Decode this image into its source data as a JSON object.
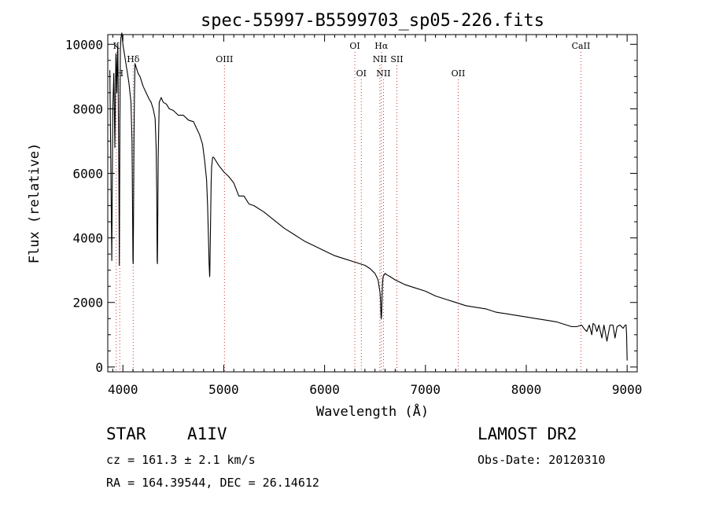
{
  "chart_data": {
    "type": "line",
    "title": "spec-55997-B5599703_sp05-226.fits",
    "xlabel": "Wavelength (Å)",
    "ylabel": "Flux (relative)",
    "xlim": [
      3850,
      9100
    ],
    "ylim": [
      -150,
      10300
    ],
    "xticks": [
      4000,
      5000,
      6000,
      7000,
      8000,
      9000
    ],
    "yticks": [
      0,
      2000,
      4000,
      6000,
      8000,
      10000
    ],
    "grid": false,
    "line_color": "#000000",
    "marker_color": "#cc3333",
    "series": [
      {
        "x": [
          3870,
          3880,
          3890,
          3900,
          3910,
          3920,
          3930,
          3935,
          3940,
          3945,
          3950,
          3960,
          3965,
          3970,
          3975,
          3980,
          3990,
          4000,
          4010,
          4020,
          4040,
          4060,
          4080,
          4090,
          4095,
          4100,
          4102,
          4105,
          4110,
          4115,
          4120,
          4130,
          4150,
          4170,
          4200,
          4230,
          4260,
          4280,
          4300,
          4320,
          4330,
          4335,
          4340,
          4342,
          4345,
          4350,
          4360,
          4380,
          4400,
          4430,
          4460,
          4500,
          4550,
          4600,
          4650,
          4700,
          4730,
          4760,
          4790,
          4810,
          4830,
          4840,
          4850,
          4855,
          4860,
          4862,
          4865,
          4870,
          4875,
          4880,
          4890,
          4900,
          4950,
          5000,
          5050,
          5100,
          5150,
          5200,
          5250,
          5300,
          5400,
          5500,
          5600,
          5700,
          5800,
          5900,
          6000,
          6100,
          6200,
          6300,
          6400,
          6450,
          6500,
          6530,
          6550,
          6555,
          6560,
          6563,
          6566,
          6570,
          6575,
          6580,
          6600,
          6620,
          6650,
          6700,
          6800,
          6900,
          7000,
          7100,
          7200,
          7300,
          7400,
          7500,
          7600,
          7700,
          7800,
          7900,
          8000,
          8100,
          8200,
          8300,
          8400,
          8450,
          8500,
          8550,
          8570,
          8600,
          8625,
          8650,
          8662,
          8680,
          8700,
          8720,
          8750,
          8770,
          8800,
          8830,
          8860,
          8880,
          8900,
          8930,
          8960,
          8980,
          8990,
          8995,
          9000
        ],
        "y": [
          9200,
          6500,
          3300,
          8000,
          9100,
          6800,
          9700,
          9200,
          8500,
          9600,
          10000,
          6000,
          3150,
          7500,
          9800,
          10200,
          10350,
          10000,
          9800,
          9600,
          9200,
          8800,
          8200,
          7000,
          5200,
          3300,
          3200,
          4500,
          7000,
          8600,
          9400,
          9300,
          9100,
          9000,
          8700,
          8500,
          8300,
          8200,
          8000,
          7700,
          6800,
          5500,
          3300,
          3200,
          4300,
          6500,
          8200,
          8350,
          8200,
          8150,
          8000,
          7950,
          7800,
          7800,
          7650,
          7600,
          7400,
          7200,
          6900,
          6400,
          5800,
          5000,
          3800,
          3200,
          2800,
          2850,
          3500,
          4700,
          5700,
          6200,
          6500,
          6500,
          6250,
          6050,
          5900,
          5700,
          5300,
          5300,
          5050,
          5000,
          4800,
          4550,
          4300,
          4100,
          3900,
          3750,
          3600,
          3450,
          3350,
          3250,
          3150,
          3050,
          2900,
          2700,
          2300,
          2000,
          1550,
          1500,
          1700,
          2200,
          2600,
          2800,
          2900,
          2850,
          2800,
          2700,
          2550,
          2450,
          2350,
          2200,
          2100,
          2000,
          1900,
          1850,
          1800,
          1700,
          1650,
          1600,
          1550,
          1500,
          1450,
          1400,
          1300,
          1250,
          1250,
          1300,
          1200,
          1100,
          1300,
          1000,
          1350,
          1300,
          1100,
          1300,
          900,
          1300,
          800,
          1300,
          1300,
          900,
          1250,
          1300,
          1200,
          1300,
          1300,
          1000,
          200
        ]
      }
    ],
    "line_markers": [
      {
        "label": "K",
        "x": 3934,
        "row": 1
      },
      {
        "label": "H",
        "x": 3969,
        "row": 3
      },
      {
        "label": "Hδ",
        "x": 4102,
        "row": 2
      },
      {
        "label": "OIII",
        "x": 5007,
        "row": 2
      },
      {
        "label": "OI",
        "x": 6300,
        "row": 1
      },
      {
        "label": "OI",
        "x": 6364,
        "row": 3
      },
      {
        "label": "Hα",
        "x": 6563,
        "row": 1
      },
      {
        "label": "NII",
        "x": 6548,
        "row": 2
      },
      {
        "label": "NII",
        "x": 6584,
        "row": 3
      },
      {
        "label": "SII",
        "x": 6717,
        "row": 2
      },
      {
        "label": "OII",
        "x": 7325,
        "row": 3
      },
      {
        "label": "CaII",
        "x": 8542,
        "row": 1
      }
    ]
  },
  "info": {
    "object_type": "STAR",
    "subclass": "A1IV",
    "redshift": "cz = 161.3 ± 2.1 km/s",
    "coordinates": "RA = 164.39544, DEC =  26.14612",
    "survey": "LAMOST DR2",
    "obs_date": "Obs-Date: 20120310"
  }
}
